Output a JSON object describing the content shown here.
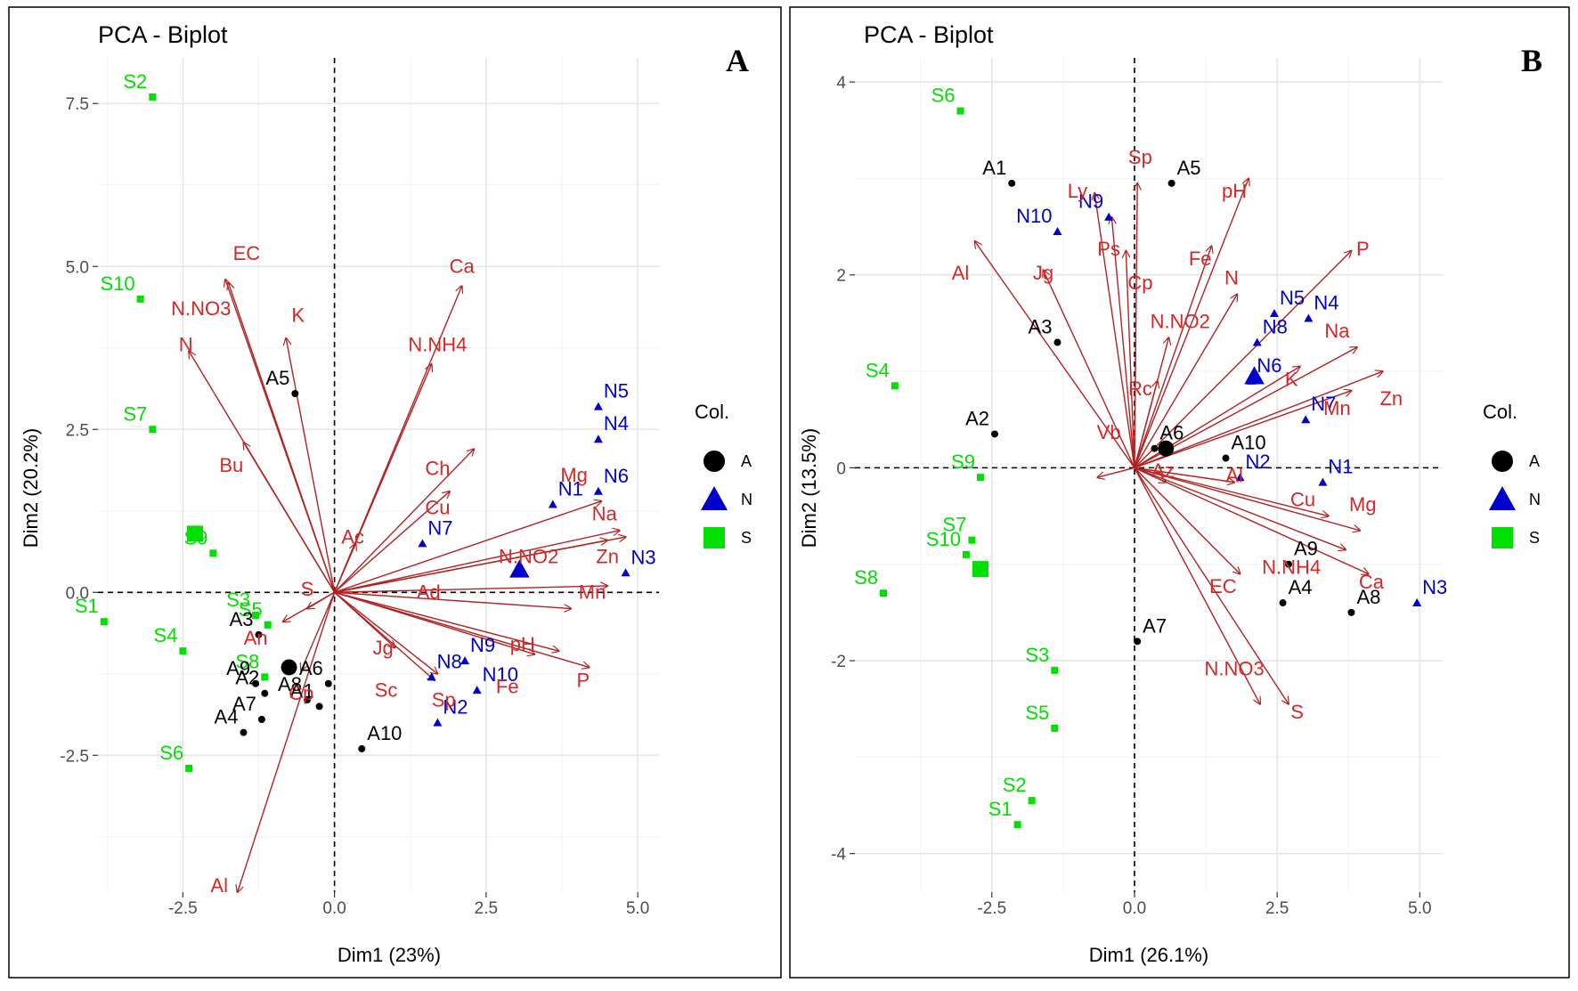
{
  "figure": {
    "legend_title": "Col.",
    "legend_groups": [
      "A",
      "N",
      "S"
    ],
    "group_colors": {
      "A": "#000000",
      "N": "#0000CC",
      "S": "#00E000"
    },
    "arrow_color": "#B22222",
    "var_label_color": "#D62728"
  },
  "chart_data": [
    {
      "type": "scatter",
      "subtype": "pca-biplot",
      "panel": "A",
      "title": "PCA - Biplot",
      "xlabel": "Dim1 (23%)",
      "ylabel": "Dim2 (20.2%)",
      "xlim": [
        -3.9,
        5.35
      ],
      "ylim": [
        -4.6,
        8.2
      ],
      "xticks": [
        -2.5,
        0.0,
        2.5,
        5.0
      ],
      "xtick_labels": [
        "-2.5",
        "0.0",
        "2.5",
        "5.0"
      ],
      "yticks": [
        -2.5,
        0.0,
        2.5,
        5.0,
        7.5
      ],
      "ytick_labels": [
        "-2.5",
        "0.0",
        "2.5",
        "5.0",
        "7.5"
      ],
      "legend": "right",
      "points": [
        {
          "label": "S2",
          "group": "S",
          "x": -3.0,
          "y": 7.6
        },
        {
          "label": "S10",
          "group": "S",
          "x": -3.2,
          "y": 4.5
        },
        {
          "label": "S7",
          "group": "S",
          "x": -3.0,
          "y": 2.5
        },
        {
          "label": "S9",
          "group": "S",
          "x": -2.0,
          "y": 0.6
        },
        {
          "label": "S1",
          "group": "S",
          "x": -3.8,
          "y": -0.45
        },
        {
          "label": "S4",
          "group": "S",
          "x": -2.5,
          "y": -0.9
        },
        {
          "label": "S3",
          "group": "S",
          "x": -1.3,
          "y": -0.35
        },
        {
          "label": "S5",
          "group": "S",
          "x": -1.1,
          "y": -0.5
        },
        {
          "label": "S8",
          "group": "S",
          "x": -1.15,
          "y": -1.3
        },
        {
          "label": "S6",
          "group": "S",
          "x": -2.4,
          "y": -2.7
        },
        {
          "label": "A5",
          "group": "A",
          "x": -0.65,
          "y": 3.05
        },
        {
          "label": "A3",
          "group": "A",
          "x": -1.25,
          "y": -0.65
        },
        {
          "label": "A9",
          "group": "A",
          "x": -1.3,
          "y": -1.4
        },
        {
          "label": "A2",
          "group": "A",
          "x": -1.15,
          "y": -1.55
        },
        {
          "label": "A4",
          "group": "A",
          "x": -1.5,
          "y": -2.15
        },
        {
          "label": "A7",
          "group": "A",
          "x": -1.2,
          "y": -1.95
        },
        {
          "label": "A6",
          "group": "A",
          "x": -0.1,
          "y": -1.4
        },
        {
          "label": "A8",
          "group": "A",
          "x": -0.45,
          "y": -1.65
        },
        {
          "label": "A1",
          "group": "A",
          "x": -0.25,
          "y": -1.75
        },
        {
          "label": "A10",
          "group": "A",
          "x": 0.45,
          "y": -2.4
        },
        {
          "label": "N5",
          "group": "N",
          "x": 4.35,
          "y": 2.85
        },
        {
          "label": "N4",
          "group": "N",
          "x": 4.35,
          "y": 2.35
        },
        {
          "label": "N6",
          "group": "N",
          "x": 4.35,
          "y": 1.55
        },
        {
          "label": "N1",
          "group": "N",
          "x": 3.6,
          "y": 1.35
        },
        {
          "label": "N7",
          "group": "N",
          "x": 1.45,
          "y": 0.75
        },
        {
          "label": "N3",
          "group": "N",
          "x": 4.8,
          "y": 0.3
        },
        {
          "label": "N9",
          "group": "N",
          "x": 2.15,
          "y": -1.05
        },
        {
          "label": "N8",
          "group": "N",
          "x": 1.6,
          "y": -1.3
        },
        {
          "label": "N10",
          "group": "N",
          "x": 2.35,
          "y": -1.5
        },
        {
          "label": "N2",
          "group": "N",
          "x": 1.7,
          "y": -2.0
        }
      ],
      "centroids": [
        {
          "group": "S",
          "x": -2.3,
          "y": 0.9
        },
        {
          "group": "A",
          "x": -0.75,
          "y": -1.15
        },
        {
          "group": "N",
          "x": 3.05,
          "y": 0.35
        }
      ],
      "variables": [
        {
          "name": "EC",
          "x": -1.8,
          "y": 4.8
        },
        {
          "name": "N.NO3",
          "x": -1.75,
          "y": 4.75
        },
        {
          "name": "N",
          "x": -2.4,
          "y": 3.7
        },
        {
          "name": "K",
          "x": -0.8,
          "y": 3.9
        },
        {
          "name": "Bu",
          "x": -1.5,
          "y": 2.3
        },
        {
          "name": "Ca",
          "x": 2.1,
          "y": 4.7
        },
        {
          "name": "N.NH4",
          "x": 1.6,
          "y": 3.5
        },
        {
          "name": "Ch",
          "x": 2.3,
          "y": 2.2
        },
        {
          "name": "Cu",
          "x": 1.9,
          "y": 1.55
        },
        {
          "name": "Ac",
          "x": 0.35,
          "y": 0.75
        },
        {
          "name": "Mg",
          "x": 4.4,
          "y": 1.4
        },
        {
          "name": "Na",
          "x": 4.7,
          "y": 0.95
        },
        {
          "name": "N.NO2",
          "x": 4.5,
          "y": 0.8
        },
        {
          "name": "Zn",
          "x": 4.8,
          "y": 0.85
        },
        {
          "name": "Mn",
          "x": 4.5,
          "y": 0.1
        },
        {
          "name": "Ad",
          "x": 3.9,
          "y": -0.25
        },
        {
          "name": "pH",
          "x": 3.7,
          "y": -0.9
        },
        {
          "name": "P",
          "x": 4.2,
          "y": -1.15
        },
        {
          "name": "Fe",
          "x": 3.3,
          "y": -0.95
        },
        {
          "name": "Jg",
          "x": 1.0,
          "y": -0.85
        },
        {
          "name": "Sc",
          "x": 1.7,
          "y": -1.25
        },
        {
          "name": "Sp",
          "x": 1.65,
          "y": -1.35
        },
        {
          "name": "S",
          "x": -0.45,
          "y": -0.25
        },
        {
          "name": "An",
          "x": -0.85,
          "y": -0.45
        },
        {
          "name": "Cp",
          "x": -0.55,
          "y": -1.2
        },
        {
          "name": "Al",
          "x": -1.6,
          "y": -4.6
        }
      ],
      "variable_labels": [
        {
          "name": "EC",
          "x": -1.45,
          "y": 5.1
        },
        {
          "name": "N.NO3",
          "x": -2.2,
          "y": 4.25
        },
        {
          "name": "N",
          "x": -2.45,
          "y": 3.7
        },
        {
          "name": "K",
          "x": -0.6,
          "y": 4.15
        },
        {
          "name": "Bu",
          "x": -1.7,
          "y": 1.85
        },
        {
          "name": "Ca",
          "x": 2.1,
          "y": 4.9
        },
        {
          "name": "N.NH4",
          "x": 1.7,
          "y": 3.7
        },
        {
          "name": "Ch",
          "x": 1.7,
          "y": 1.8
        },
        {
          "name": "Cu",
          "x": 1.7,
          "y": 1.2
        },
        {
          "name": "Ac",
          "x": 0.3,
          "y": 0.75
        },
        {
          "name": "Mg",
          "x": 3.95,
          "y": 1.7
        },
        {
          "name": "Na",
          "x": 4.45,
          "y": 1.1
        },
        {
          "name": "N.NO2",
          "x": 3.2,
          "y": 0.45
        },
        {
          "name": "Zn",
          "x": 4.5,
          "y": 0.45
        },
        {
          "name": "Mn",
          "x": 4.25,
          "y": -0.1
        },
        {
          "name": "Ad",
          "x": 1.55,
          "y": -0.1
        },
        {
          "name": "pH",
          "x": 3.1,
          "y": -0.9
        },
        {
          "name": "P",
          "x": 4.1,
          "y": -1.45
        },
        {
          "name": "Fe",
          "x": 2.85,
          "y": -1.55
        },
        {
          "name": "Jg",
          "x": 0.8,
          "y": -0.95
        },
        {
          "name": "Sc",
          "x": 0.85,
          "y": -1.6
        },
        {
          "name": "Sp",
          "x": 1.8,
          "y": -1.75
        },
        {
          "name": "S",
          "x": -0.45,
          "y": -0.05
        },
        {
          "name": "An",
          "x": -1.3,
          "y": -0.8
        },
        {
          "name": "Cp",
          "x": -0.55,
          "y": -1.65
        },
        {
          "name": "Al",
          "x": -1.9,
          "y": -4.6
        }
      ]
    },
    {
      "type": "scatter",
      "subtype": "pca-biplot",
      "panel": "B",
      "title": "PCA - Biplot",
      "xlabel": "Dim1 (26.1%)",
      "ylabel": "Dim2 (13.5%)",
      "xlim": [
        -4.9,
        5.4
      ],
      "ylim": [
        -4.4,
        4.25
      ],
      "xticks": [
        -2.5,
        0.0,
        2.5,
        5.0
      ],
      "xtick_labels": [
        "-2.5",
        "0.0",
        "2.5",
        "5.0"
      ],
      "yticks": [
        -4,
        -2,
        0,
        2,
        4
      ],
      "ytick_labels": [
        "-4",
        "-2",
        "0",
        "2",
        "4"
      ],
      "legend": "right",
      "points": [
        {
          "label": "S6",
          "group": "S",
          "x": -3.05,
          "y": 3.7
        },
        {
          "label": "S4",
          "group": "S",
          "x": -4.2,
          "y": 0.85
        },
        {
          "label": "S9",
          "group": "S",
          "x": -2.7,
          "y": -0.1
        },
        {
          "label": "S7",
          "group": "S",
          "x": -2.85,
          "y": -0.75
        },
        {
          "label": "S10",
          "group": "S",
          "x": -2.95,
          "y": -0.9
        },
        {
          "label": "S8",
          "group": "S",
          "x": -4.4,
          "y": -1.3
        },
        {
          "label": "S3",
          "group": "S",
          "x": -1.4,
          "y": -2.1
        },
        {
          "label": "S5",
          "group": "S",
          "x": -1.4,
          "y": -2.7
        },
        {
          "label": "S2",
          "group": "S",
          "x": -1.8,
          "y": -3.45
        },
        {
          "label": "S1",
          "group": "S",
          "x": -2.05,
          "y": -3.7
        },
        {
          "label": "A1",
          "group": "A",
          "x": -2.15,
          "y": 2.95
        },
        {
          "label": "A5",
          "group": "A",
          "x": 0.65,
          "y": 2.95
        },
        {
          "label": "A3",
          "group": "A",
          "x": -1.35,
          "y": 1.3
        },
        {
          "label": "A2",
          "group": "A",
          "x": -2.45,
          "y": 0.35
        },
        {
          "label": "A10",
          "group": "A",
          "x": 1.6,
          "y": 0.1
        },
        {
          "label": "A6",
          "group": "A",
          "x": 0.35,
          "y": 0.2
        },
        {
          "label": "A9",
          "group": "A",
          "x": 2.7,
          "y": -1.0
        },
        {
          "label": "A4",
          "group": "A",
          "x": 2.6,
          "y": -1.4
        },
        {
          "label": "A8",
          "group": "A",
          "x": 3.8,
          "y": -1.5
        },
        {
          "label": "A7",
          "group": "A",
          "x": 0.05,
          "y": -1.8
        },
        {
          "label": "N9",
          "group": "N",
          "x": -0.45,
          "y": 2.6
        },
        {
          "label": "N10",
          "group": "N",
          "x": -1.35,
          "y": 2.45
        },
        {
          "label": "N5",
          "group": "N",
          "x": 2.45,
          "y": 1.6
        },
        {
          "label": "N4",
          "group": "N",
          "x": 3.05,
          "y": 1.55
        },
        {
          "label": "N8",
          "group": "N",
          "x": 2.15,
          "y": 1.3
        },
        {
          "label": "N6",
          "group": "N",
          "x": 2.05,
          "y": 0.9
        },
        {
          "label": "N7",
          "group": "N",
          "x": 3.0,
          "y": 0.5
        },
        {
          "label": "N1",
          "group": "N",
          "x": 3.3,
          "y": -0.15
        },
        {
          "label": "N2",
          "group": "N",
          "x": 1.85,
          "y": -0.1
        },
        {
          "label": "N3",
          "group": "N",
          "x": 4.95,
          "y": -1.4
        }
      ],
      "centroids": [
        {
          "group": "S",
          "x": -2.7,
          "y": -1.05
        },
        {
          "group": "A",
          "x": 0.55,
          "y": 0.2
        },
        {
          "group": "N",
          "x": 2.1,
          "y": 0.95
        }
      ],
      "variables": [
        {
          "name": "Sp",
          "x": 0.05,
          "y": 2.95
        },
        {
          "name": "Ly",
          "x": -0.7,
          "y": 2.85
        },
        {
          "name": "pH",
          "x": 2.0,
          "y": 3.0
        },
        {
          "name": "Fe",
          "x": 1.35,
          "y": 2.3
        },
        {
          "name": "Al",
          "x": -2.8,
          "y": 2.35
        },
        {
          "name": "Jg",
          "x": -1.6,
          "y": 2.05
        },
        {
          "name": "Ps",
          "x": -0.4,
          "y": 2.6
        },
        {
          "name": "Cp",
          "x": -0.15,
          "y": 2.25
        },
        {
          "name": "P",
          "x": 3.8,
          "y": 2.25
        },
        {
          "name": "N",
          "x": 1.8,
          "y": 1.8
        },
        {
          "name": "N.NO2",
          "x": 0.6,
          "y": 1.35
        },
        {
          "name": "Na",
          "x": 3.9,
          "y": 1.25
        },
        {
          "name": "K",
          "x": 2.9,
          "y": 1.05
        },
        {
          "name": "Zn",
          "x": 4.35,
          "y": 1.0
        },
        {
          "name": "Mn",
          "x": 3.8,
          "y": 0.8
        },
        {
          "name": "Rc",
          "x": 0.4,
          "y": 0.9
        },
        {
          "name": "Vb",
          "x": -0.65,
          "y": -0.1
        },
        {
          "name": "Az",
          "x": 0.55,
          "y": -0.15
        },
        {
          "name": "Al",
          "x": 1.75,
          "y": -0.15
        },
        {
          "name": "Cu",
          "x": 3.4,
          "y": -0.5
        },
        {
          "name": "Mg",
          "x": 3.95,
          "y": -0.65
        },
        {
          "name": "Ca",
          "x": 4.1,
          "y": -1.1
        },
        {
          "name": "N.NH4",
          "x": 3.7,
          "y": -0.85
        },
        {
          "name": "EC",
          "x": 1.85,
          "y": -1.1
        },
        {
          "name": "N.NO3",
          "x": 2.2,
          "y": -2.45
        },
        {
          "name": "S",
          "x": 2.7,
          "y": -2.45
        }
      ],
      "variable_labels": [
        {
          "name": "Sp",
          "x": 0.1,
          "y": 3.15
        },
        {
          "name": "Ly",
          "x": -1.0,
          "y": 2.8
        },
        {
          "name": "pH",
          "x": 1.75,
          "y": 2.8
        },
        {
          "name": "Fe",
          "x": 1.15,
          "y": 2.1
        },
        {
          "name": "Al",
          "x": -3.05,
          "y": 1.95
        },
        {
          "name": "Jg",
          "x": -1.6,
          "y": 1.95
        },
        {
          "name": "Ps",
          "x": -0.45,
          "y": 2.2
        },
        {
          "name": "Cp",
          "x": 0.1,
          "y": 1.85
        },
        {
          "name": "P",
          "x": 4.0,
          "y": 2.2
        },
        {
          "name": "N",
          "x": 1.7,
          "y": 1.9
        },
        {
          "name": "N.NO2",
          "x": 0.8,
          "y": 1.45
        },
        {
          "name": "Na",
          "x": 3.55,
          "y": 1.35
        },
        {
          "name": "K",
          "x": 2.75,
          "y": 0.85
        },
        {
          "name": "Zn",
          "x": 4.5,
          "y": 0.65
        },
        {
          "name": "Mn",
          "x": 3.55,
          "y": 0.55
        },
        {
          "name": "Rc",
          "x": 0.1,
          "y": 0.75
        },
        {
          "name": "Vb",
          "x": -0.45,
          "y": 0.3
        },
        {
          "name": "Az",
          "x": 0.5,
          "y": -0.1
        },
        {
          "name": "Al",
          "x": 1.75,
          "y": -0.15
        },
        {
          "name": "Cu",
          "x": 2.95,
          "y": -0.4
        },
        {
          "name": "Mg",
          "x": 4.0,
          "y": -0.45
        },
        {
          "name": "Ca",
          "x": 4.15,
          "y": -1.25
        },
        {
          "name": "N.NH4",
          "x": 2.75,
          "y": -1.1
        },
        {
          "name": "EC",
          "x": 1.55,
          "y": -1.3
        },
        {
          "name": "N.NO3",
          "x": 1.75,
          "y": -2.15
        },
        {
          "name": "S",
          "x": 2.85,
          "y": -2.6
        }
      ]
    }
  ]
}
